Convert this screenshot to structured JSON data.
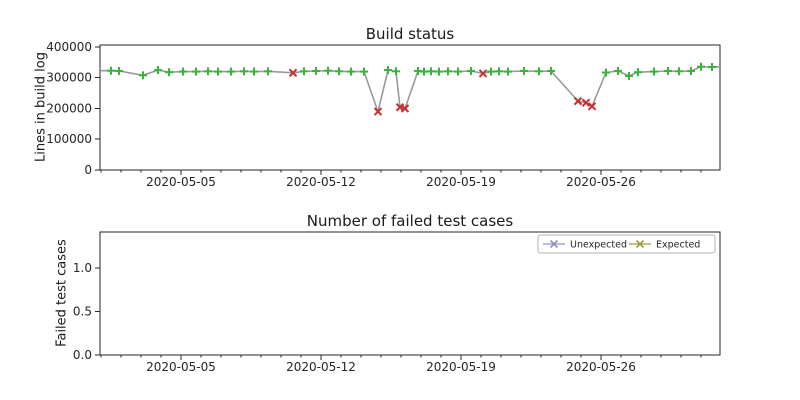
{
  "figure": {
    "background": "#ffffff"
  },
  "chart_data": [
    {
      "type": "line",
      "title": "Build status",
      "ylabel": "Lines in build log",
      "x_start_date": "2020-05-01",
      "x_range_days": [
        -0.05,
        30.95
      ],
      "x_tick_days": [
        4,
        11,
        18,
        25
      ],
      "x_tick_labels": [
        "2020-05-05",
        "2020-05-12",
        "2020-05-19",
        "2020-05-26"
      ],
      "x_minor_tick_every_days": 1,
      "y_ticks": [
        0,
        100000,
        200000,
        300000,
        400000
      ],
      "y_tick_labels": [
        "0",
        "100000",
        "200000",
        "300000",
        "400000"
      ],
      "y_range": [
        0,
        406500
      ],
      "grid": false,
      "line_color": "#999999",
      "marker_ok": {
        "glyph": "plus",
        "color": "#38b438",
        "meaning": "successful build"
      },
      "marker_fail": {
        "glyph": "x",
        "color": "#c53030",
        "meaning": "failed build"
      },
      "points": [
        [
          0.0,
          323000,
          "none"
        ],
        [
          0.5,
          323000,
          "ok"
        ],
        [
          0.9,
          322000,
          "ok"
        ],
        [
          2.1,
          308000,
          "ok"
        ],
        [
          2.85,
          325000,
          "ok"
        ],
        [
          3.4,
          318000,
          "ok"
        ],
        [
          4.1,
          320000,
          "ok"
        ],
        [
          4.75,
          320000,
          "ok"
        ],
        [
          5.35,
          321000,
          "ok"
        ],
        [
          5.85,
          320000,
          "ok"
        ],
        [
          6.5,
          320000,
          "ok"
        ],
        [
          7.15,
          321000,
          "ok"
        ],
        [
          7.65,
          320000,
          "ok"
        ],
        [
          8.35,
          321000,
          "ok"
        ],
        [
          9.6,
          316000,
          "fail"
        ],
        [
          10.15,
          321000,
          "ok"
        ],
        [
          10.75,
          322000,
          "ok"
        ],
        [
          11.35,
          323000,
          "ok"
        ],
        [
          11.9,
          321000,
          "ok"
        ],
        [
          12.5,
          320000,
          "ok"
        ],
        [
          13.15,
          320000,
          "ok"
        ],
        [
          13.85,
          190000,
          "fail"
        ],
        [
          14.35,
          325000,
          "ok"
        ],
        [
          14.75,
          321000,
          "ok"
        ],
        [
          14.95,
          204000,
          "fail"
        ],
        [
          15.2,
          200000,
          "fail"
        ],
        [
          15.85,
          322000,
          "ok"
        ],
        [
          16.15,
          320000,
          "ok"
        ],
        [
          16.5,
          321000,
          "ok"
        ],
        [
          16.9,
          320000,
          "ok"
        ],
        [
          17.35,
          321000,
          "ok"
        ],
        [
          17.85,
          320000,
          "ok"
        ],
        [
          18.5,
          322000,
          "ok"
        ],
        [
          19.1,
          314000,
          "fail"
        ],
        [
          19.5,
          320000,
          "ok"
        ],
        [
          19.9,
          321000,
          "ok"
        ],
        [
          20.35,
          320000,
          "ok"
        ],
        [
          21.15,
          322000,
          "ok"
        ],
        [
          21.9,
          321000,
          "ok"
        ],
        [
          22.5,
          322000,
          "ok"
        ],
        [
          23.85,
          224000,
          "fail"
        ],
        [
          24.25,
          219000,
          "fail"
        ],
        [
          24.55,
          207000,
          "fail"
        ],
        [
          25.25,
          317000,
          "ok"
        ],
        [
          25.85,
          322000,
          "ok"
        ],
        [
          26.4,
          306000,
          "ok"
        ],
        [
          26.85,
          318000,
          "ok"
        ],
        [
          27.65,
          320000,
          "ok"
        ],
        [
          28.35,
          322000,
          "ok"
        ],
        [
          28.9,
          321000,
          "ok"
        ],
        [
          29.5,
          322000,
          "ok"
        ],
        [
          30.0,
          336000,
          "ok"
        ],
        [
          30.55,
          335000,
          "ok"
        ],
        [
          30.95,
          336000,
          "none"
        ]
      ]
    },
    {
      "type": "line",
      "title": "Number of failed test cases",
      "ylabel": "Failed test cases",
      "x_start_date": "2020-05-01",
      "x_range_days": [
        -0.05,
        30.95
      ],
      "x_tick_days": [
        4,
        11,
        18,
        25
      ],
      "x_tick_labels": [
        "2020-05-05",
        "2020-05-12",
        "2020-05-19",
        "2020-05-26"
      ],
      "x_minor_tick_every_days": 1,
      "y_ticks": [
        0.0,
        0.5,
        1.0
      ],
      "y_tick_labels": [
        "0.0",
        "0.5",
        "1.0"
      ],
      "y_range": [
        0,
        1.414
      ],
      "grid": false,
      "legend": {
        "position": "upper right",
        "entries": [
          {
            "label": "Unexpected",
            "color": "#8f8fc7",
            "glyph": "x"
          },
          {
            "label": "Expected",
            "color": "#9c9c3d",
            "glyph": "x"
          }
        ]
      },
      "series": [
        {
          "name": "Unexpected",
          "points": []
        },
        {
          "name": "Expected",
          "points": []
        }
      ]
    }
  ]
}
